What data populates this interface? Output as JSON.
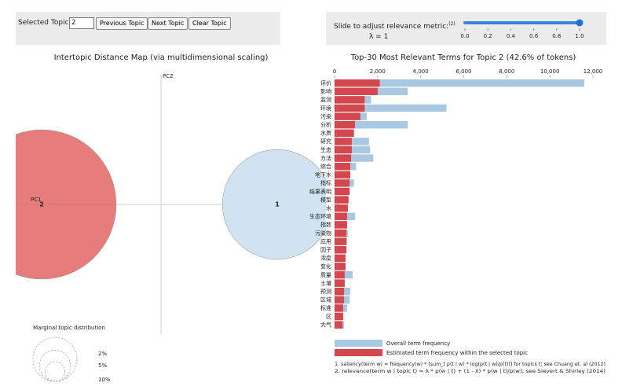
{
  "controls": {
    "topic_label": "Selected Topic:",
    "topic_value": 2,
    "buttons": [
      "Previous Topic",
      "Next Topic",
      "Clear Topic"
    ],
    "slider": {
      "label": "Slide to adjust relevance metric:",
      "note": "(2)",
      "lambda_prefix": "λ =",
      "value": 1,
      "min": 0,
      "max": 1,
      "ticks": [
        {
          "value": 0,
          "label": "0.0"
        },
        {
          "value": 0.2,
          "label": "0.2"
        },
        {
          "value": 0.4,
          "label": "0.4"
        },
        {
          "value": 0.6,
          "label": "0.6"
        },
        {
          "value": 0.8,
          "label": "0.8"
        },
        {
          "value": 1,
          "label": "1.0"
        }
      ]
    }
  },
  "chart_data": [
    {
      "type": "scatter",
      "title": "Intertopic Distance Map (via multidimensional scaling)",
      "xlabel": "PC1",
      "ylabel": "PC2",
      "labels": [
        "1",
        "2"
      ],
      "x": [
        0.148,
        -0.152
      ],
      "y": [
        0,
        0
      ],
      "sizes": [
        23,
        42.6
      ],
      "colors": [
        "#cfe2f1",
        "#e57676"
      ],
      "size_legend": {
        "title": "Marginal topic distribution",
        "values": [
          2,
          5,
          10
        ],
        "value_labels": [
          "2%",
          "5%",
          "10%"
        ]
      }
    },
    {
      "type": "bar",
      "orientation": "horizontal",
      "title": "Top-30 Most Relevant Terms for Topic 2 (42.6% of tokens)",
      "categories": [
        "评价",
        "影响",
        "监测",
        "环境",
        "污染",
        "分析",
        "水质",
        "研究",
        "生态",
        "方法",
        "综合",
        "地下水",
        "指标",
        "结果表明",
        "模型",
        "水",
        "生态环境",
        "指数",
        "污染物",
        "应用",
        "因子",
        "浓度",
        "变化",
        "质量",
        "土壤",
        "预测",
        "区域",
        "标准",
        "区",
        "大气"
      ],
      "series": [
        {
          "name": "Overall term frequency",
          "color": "#a9c9e2",
          "values": [
            11600,
            3400,
            1700,
            5200,
            1500,
            3400,
            900,
            1600,
            1650,
            1800,
            1000,
            730,
            900,
            700,
            650,
            620,
            950,
            580,
            620,
            580,
            550,
            510,
            510,
            840,
            470,
            730,
            700,
            580,
            400,
            440
          ]
        },
        {
          "name": "Estimated term frequency within the selected topic",
          "color": "#d4474f",
          "values": [
            2100,
            2000,
            1400,
            1400,
            1200,
            950,
            900,
            800,
            800,
            770,
            730,
            730,
            700,
            700,
            650,
            620,
            580,
            580,
            550,
            550,
            550,
            510,
            510,
            470,
            470,
            440,
            440,
            400,
            400,
            370
          ]
        }
      ],
      "xlim": [
        0,
        12000
      ],
      "xticks": [
        0,
        {
          "value": 2000,
          "label": "2,000"
        },
        {
          "value": 4000,
          "label": "4,000"
        },
        {
          "value": 6000,
          "label": "6,000"
        },
        {
          "value": 8000,
          "label": "8,000"
        },
        {
          "value": 10000,
          "label": "10,000"
        },
        {
          "value": 12000,
          "label": "12,000"
        }
      ],
      "footnotes": [
        "1. saliency(term w) = frequency(w) * [sum_t p(t | w) * log(p(t | w)/p(t))] for topics t; see Chuang et. al (2012)",
        "2. relevance(term w | topic t) = λ * p(w | t) + (1 - λ) * p(w | t)/p(w); see Sievert & Shirley (2014)"
      ]
    }
  ]
}
